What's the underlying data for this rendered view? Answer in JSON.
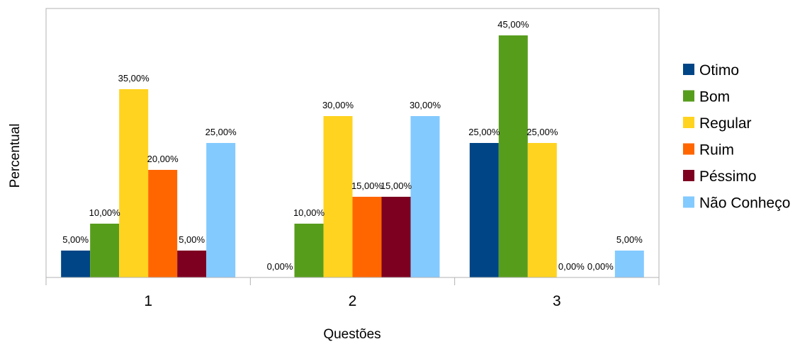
{
  "chart_data": {
    "type": "bar",
    "categories": [
      "1",
      "2",
      "3"
    ],
    "series": [
      {
        "name": "Otimo",
        "color": "#004586",
        "values": [
          5,
          0,
          25
        ],
        "labels": [
          "5,00%",
          "0,00%",
          "25,00%"
        ]
      },
      {
        "name": "Bom",
        "color": "#579d1c",
        "values": [
          10,
          10,
          45
        ],
        "labels": [
          "10,00%",
          "10,00%",
          "45,00%"
        ]
      },
      {
        "name": "Regular",
        "color": "#ffd320",
        "values": [
          35,
          30,
          25
        ],
        "labels": [
          "35,00%",
          "30,00%",
          "25,00%"
        ]
      },
      {
        "name": "Ruim",
        "color": "#ff6600",
        "values": [
          20,
          15,
          0
        ],
        "labels": [
          "20,00%",
          "15,00%",
          "0,00%"
        ]
      },
      {
        "name": "Péssimo",
        "color": "#7e0021",
        "values": [
          5,
          15,
          0
        ],
        "labels": [
          "5,00%",
          "15,00%",
          "0,00%"
        ]
      },
      {
        "name": "Não Conheço",
        "color": "#83caff",
        "values": [
          25,
          30,
          5
        ],
        "labels": [
          "25,00%",
          "30,00%",
          "5,00%"
        ]
      }
    ],
    "xlabel": "Questões",
    "ylabel": "Percentual",
    "ylim": [
      0,
      50
    ],
    "grid": false,
    "legend": "right"
  }
}
